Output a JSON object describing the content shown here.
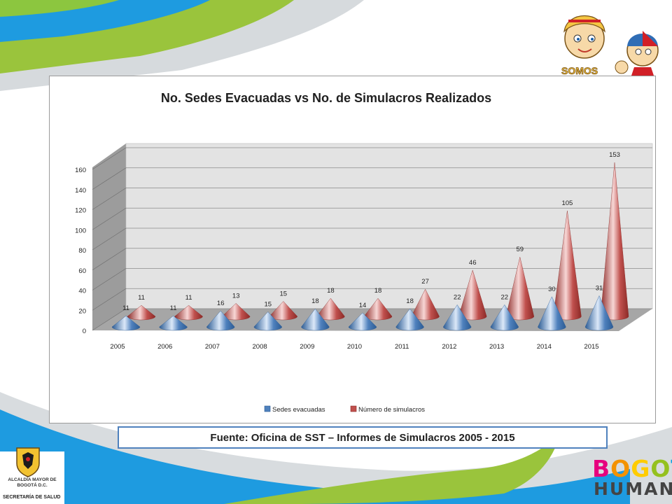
{
  "chart_data": {
    "type": "bar",
    "style": "3d-cone",
    "title": "No. Sedes Evacuadas vs No. de Simulacros Realizados",
    "categories": [
      "2005",
      "2006",
      "2007",
      "2008",
      "2009",
      "2010",
      "2011",
      "2012",
      "2013",
      "2014",
      "2015"
    ],
    "series": [
      {
        "name": "Sedes evacuadas",
        "values": [
          11,
          11,
          16,
          15,
          18,
          14,
          18,
          22,
          22,
          30,
          31
        ],
        "color": "#4f81bd"
      },
      {
        "name": "Número de simulacros",
        "values": [
          11,
          11,
          13,
          15,
          18,
          18,
          27,
          46,
          59,
          105,
          153
        ],
        "color": "#c0504d"
      }
    ],
    "yticks": [
      0,
      20,
      40,
      60,
      80,
      100,
      120,
      140,
      160
    ],
    "ylim": [
      0,
      160
    ],
    "grid": true,
    "legend": "bottom"
  },
  "footer": {
    "source": "Fuente: Oficina de SST – Informes de Simulacros 2005 - 2015"
  },
  "logos": {
    "alcaldia": "ALCALDÍA MAYOR DE BOGOTÁ D.C.",
    "secretaria": "SECRETARÍA DE SALUD",
    "bogota_top": "BOGOTÁ",
    "bogota_bottom": "HUMANA",
    "somos": "SOMOS"
  },
  "colors": {
    "blue_band": "#1e9be0",
    "green_band": "#9ac43c",
    "grey_band": "#c8ccd0"
  }
}
